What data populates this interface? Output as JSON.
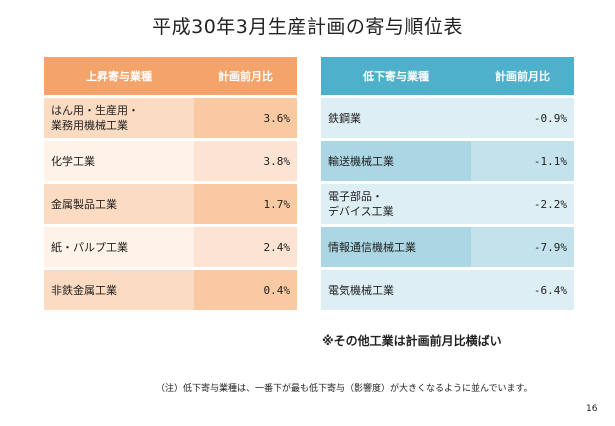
{
  "title": "平成30年3月生産計画の寄与順位表",
  "rising": {
    "header_industry": "上昇寄与業種",
    "header_value": "計画前月比",
    "rows": [
      {
        "industry": "はん用・生産用・\n業務用機械工業",
        "value": "3.6%"
      },
      {
        "industry": "化学工業",
        "value": "3.8%"
      },
      {
        "industry": "金属製品工業",
        "value": "1.7%"
      },
      {
        "industry": "紙・パルプ工業",
        "value": "2.4%"
      },
      {
        "industry": "非鉄金属工業",
        "value": "0.4%"
      }
    ]
  },
  "falling": {
    "header_industry": "低下寄与業種",
    "header_value": "計画前月比",
    "rows": [
      {
        "industry": "鉄鋼業",
        "value": "-0.9%"
      },
      {
        "industry": "輸送機械工業",
        "value": "-1.1%"
      },
      {
        "industry": "電子部品・\nデバイス工業",
        "value": "-2.2%"
      },
      {
        "industry": "情報通信機械工業",
        "value": "-7.9%"
      },
      {
        "industry": "電気機械工業",
        "value": "-6.4%"
      }
    ]
  },
  "note_other": "※その他工業は計画前月比横ばい",
  "footnote": "（注）低下寄与業種は、一番下が最も低下寄与（影響度）が大きくなるように並んでいます。",
  "page_number": "16"
}
